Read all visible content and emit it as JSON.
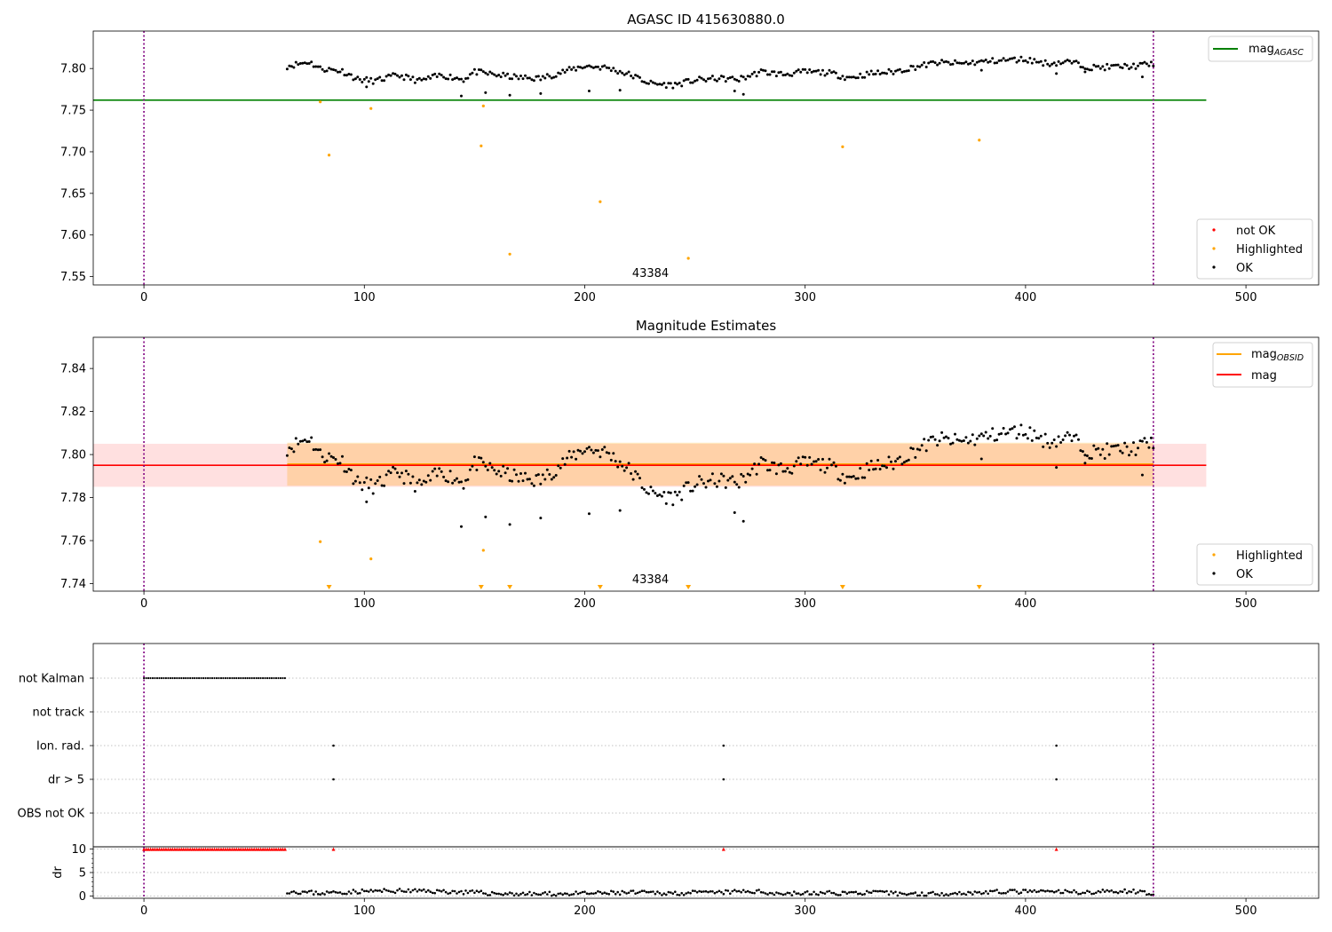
{
  "chart_data": [
    {
      "type": "scatter",
      "title": "AGASC ID 415630880.0",
      "xlim": [
        -23,
        533
      ],
      "ylim": [
        7.54,
        7.845
      ],
      "xticks": [
        0,
        100,
        200,
        300,
        400,
        500
      ],
      "yticks": [
        7.55,
        7.6,
        7.65,
        7.7,
        7.75,
        7.8
      ],
      "ytick_labels": [
        "7.55",
        "7.60",
        "7.65",
        "7.70",
        "7.75",
        "7.80"
      ],
      "annotation": "43384",
      "vlines": [
        0,
        458
      ],
      "legend_lines": [
        {
          "name": "mag_{AGASC}",
          "color": "#008000",
          "y": 7.762,
          "x_range": [
            -23,
            482
          ]
        }
      ],
      "legend_points": [
        {
          "name": "not OK",
          "color": "#ff0000"
        },
        {
          "name": "Highlighted",
          "color": "#ffa500"
        },
        {
          "name": "OK",
          "color": "#000000"
        }
      ],
      "highlighted": [
        [
          80,
          7.76
        ],
        [
          84,
          7.696
        ],
        [
          103,
          7.752
        ],
        [
          153,
          7.707
        ],
        [
          154,
          7.755
        ],
        [
          166,
          7.577
        ],
        [
          207,
          7.64
        ],
        [
          247,
          7.572
        ],
        [
          317,
          7.706
        ],
        [
          379,
          7.714
        ]
      ],
      "ok_trend": [
        [
          65,
          7.803
        ],
        [
          75,
          7.808
        ],
        [
          80,
          7.8
        ],
        [
          90,
          7.797
        ],
        [
          97,
          7.787
        ],
        [
          105,
          7.785
        ],
        [
          115,
          7.792
        ],
        [
          125,
          7.785
        ],
        [
          135,
          7.792
        ],
        [
          145,
          7.787
        ],
        [
          150,
          7.796
        ],
        [
          158,
          7.793
        ],
        [
          170,
          7.789
        ],
        [
          180,
          7.788
        ],
        [
          190,
          7.796
        ],
        [
          200,
          7.803
        ],
        [
          210,
          7.801
        ],
        [
          220,
          7.793
        ],
        [
          230,
          7.782
        ],
        [
          240,
          7.78
        ],
        [
          250,
          7.786
        ],
        [
          260,
          7.788
        ],
        [
          270,
          7.787
        ],
        [
          280,
          7.796
        ],
        [
          290,
          7.793
        ],
        [
          300,
          7.796
        ],
        [
          310,
          7.795
        ],
        [
          320,
          7.789
        ],
        [
          330,
          7.794
        ],
        [
          340,
          7.796
        ],
        [
          350,
          7.802
        ],
        [
          360,
          7.807
        ],
        [
          370,
          7.806
        ],
        [
          380,
          7.808
        ],
        [
          390,
          7.81
        ],
        [
          400,
          7.811
        ],
        [
          410,
          7.806
        ],
        [
          420,
          7.808
        ],
        [
          430,
          7.801
        ],
        [
          440,
          7.802
        ],
        [
          450,
          7.803
        ],
        [
          458,
          7.806
        ]
      ],
      "ok_outliers": [
        [
          101,
          7.778
        ],
        [
          144,
          7.767
        ],
        [
          155,
          7.771
        ],
        [
          166,
          7.768
        ],
        [
          180,
          7.77
        ],
        [
          202,
          7.773
        ],
        [
          216,
          7.774
        ],
        [
          268,
          7.773
        ],
        [
          272,
          7.769
        ],
        [
          380,
          7.798
        ],
        [
          414,
          7.794
        ],
        [
          427,
          7.796
        ],
        [
          453,
          7.79
        ]
      ]
    },
    {
      "type": "scatter",
      "title": "Magnitude Estimates",
      "xlim": [
        -23,
        533
      ],
      "ylim": [
        7.7365,
        7.8545
      ],
      "xticks": [
        0,
        100,
        200,
        300,
        400,
        500
      ],
      "yticks": [
        7.74,
        7.76,
        7.78,
        7.8,
        7.82,
        7.84
      ],
      "ytick_labels": [
        "7.74",
        "7.76",
        "7.78",
        "7.80",
        "7.82",
        "7.84"
      ],
      "annotation": "43384",
      "vlines": [
        0,
        458
      ],
      "legend_lines": [
        {
          "name": "mag_{OBSID}",
          "color": "#ffa500",
          "y": 7.7955,
          "band": [
            7.7855,
            7.8055
          ],
          "x_range": [
            65,
            458
          ]
        },
        {
          "name": "mag",
          "color": "#ff0000",
          "y": 7.795,
          "band": [
            7.785,
            7.805
          ],
          "x_range": [
            -23,
            482
          ]
        }
      ],
      "legend_points": [
        {
          "name": "Highlighted",
          "color": "#ffa500"
        },
        {
          "name": "OK",
          "color": "#000000"
        }
      ],
      "highlighted": [
        [
          80,
          7.7595
        ],
        [
          103,
          7.7515
        ],
        [
          154,
          7.7555
        ]
      ],
      "below_range_markers": [
        84,
        153,
        166,
        207,
        247,
        317,
        379
      ],
      "ok_trend": [
        [
          65,
          7.803
        ],
        [
          75,
          7.808
        ],
        [
          80,
          7.8
        ],
        [
          90,
          7.797
        ],
        [
          97,
          7.787
        ],
        [
          105,
          7.785
        ],
        [
          115,
          7.792
        ],
        [
          125,
          7.785
        ],
        [
          135,
          7.792
        ],
        [
          145,
          7.787
        ],
        [
          150,
          7.796
        ],
        [
          158,
          7.793
        ],
        [
          170,
          7.789
        ],
        [
          180,
          7.788
        ],
        [
          190,
          7.796
        ],
        [
          200,
          7.803
        ],
        [
          210,
          7.801
        ],
        [
          220,
          7.793
        ],
        [
          230,
          7.782
        ],
        [
          240,
          7.78
        ],
        [
          250,
          7.786
        ],
        [
          260,
          7.788
        ],
        [
          270,
          7.787
        ],
        [
          280,
          7.796
        ],
        [
          290,
          7.793
        ],
        [
          300,
          7.796
        ],
        [
          310,
          7.795
        ],
        [
          320,
          7.789
        ],
        [
          330,
          7.794
        ],
        [
          340,
          7.796
        ],
        [
          350,
          7.802
        ],
        [
          360,
          7.807
        ],
        [
          370,
          7.806
        ],
        [
          380,
          7.808
        ],
        [
          390,
          7.81
        ],
        [
          400,
          7.811
        ],
        [
          410,
          7.806
        ],
        [
          420,
          7.808
        ],
        [
          430,
          7.801
        ],
        [
          440,
          7.802
        ],
        [
          450,
          7.803
        ],
        [
          458,
          7.806
        ]
      ],
      "ok_outliers": [
        [
          101,
          7.778
        ],
        [
          144,
          7.7665
        ],
        [
          155,
          7.771
        ],
        [
          166,
          7.7675
        ],
        [
          180,
          7.7705
        ],
        [
          202,
          7.7725
        ],
        [
          216,
          7.774
        ],
        [
          268,
          7.773
        ],
        [
          272,
          7.769
        ],
        [
          380,
          7.798
        ],
        [
          414,
          7.794
        ],
        [
          427,
          7.796
        ],
        [
          453,
          7.7905
        ]
      ]
    },
    {
      "type": "scatter",
      "title": "",
      "xlim": [
        -23,
        533
      ],
      "xticks": [
        0,
        100,
        200,
        300,
        400,
        500
      ],
      "categories": [
        "not Kalman",
        "not track",
        "Ion. rad.",
        "dr > 5",
        "OBS not OK"
      ],
      "vlines": [
        0,
        458
      ],
      "flags": {
        "not Kalman": {
          "x_range": [
            0,
            64
          ]
        },
        "not track": {
          "x": []
        },
        "Ion. rad.": {
          "x": [
            86,
            263,
            414
          ]
        },
        "dr > 5": {
          "x": [
            86,
            263,
            414
          ]
        },
        "OBS not OK": {
          "x": []
        }
      }
    },
    {
      "type": "scatter",
      "title": "",
      "ylabel": "dr",
      "xlim": [
        -23,
        533
      ],
      "ylim": [
        -0.5,
        10.5
      ],
      "xticks": [
        0,
        100,
        200,
        300,
        400,
        500
      ],
      "yticks": [
        0,
        5,
        10
      ],
      "ytick_labels": [
        "0",
        "5",
        "10"
      ],
      "vlines": [
        0,
        458
      ],
      "clipped_markers_x": [
        0,
        64,
        86,
        263,
        414
      ],
      "dr_trend": [
        [
          65,
          1.0
        ],
        [
          80,
          0.6
        ],
        [
          100,
          1.0
        ],
        [
          120,
          1.1
        ],
        [
          140,
          0.9
        ],
        [
          160,
          0.5
        ],
        [
          180,
          0.4
        ],
        [
          200,
          0.5
        ],
        [
          220,
          0.7
        ],
        [
          240,
          0.6
        ],
        [
          260,
          0.7
        ],
        [
          275,
          1.0
        ],
        [
          290,
          0.5
        ],
        [
          310,
          0.6
        ],
        [
          330,
          0.7
        ],
        [
          350,
          0.4
        ],
        [
          370,
          0.6
        ],
        [
          390,
          0.9
        ],
        [
          410,
          0.9
        ],
        [
          430,
          0.8
        ],
        [
          445,
          1.1
        ],
        [
          458,
          0.6
        ]
      ]
    }
  ]
}
